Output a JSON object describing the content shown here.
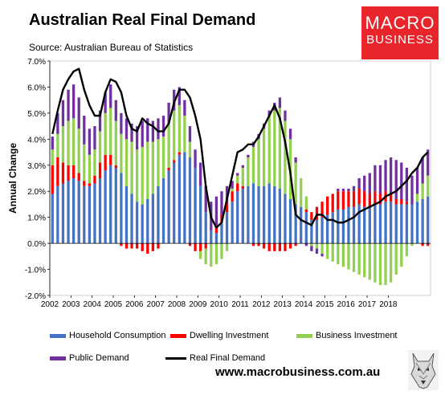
{
  "header": {
    "title": "Australian Real Final Demand",
    "subtitle": "Source: Australian Bureau of Statistics"
  },
  "logo": {
    "line1": "MACRO",
    "line2": "BUSINESS",
    "color": "#e8252b"
  },
  "footer": {
    "url": "www.macrobusiness.com.au"
  },
  "chart_data": {
    "type": "bar",
    "stacked": true,
    "title": "Australian Real Final Demand",
    "ylabel": "Annual Change",
    "xlabel": "",
    "ylim": [
      -2.0,
      7.0
    ],
    "yticks": [
      "-2.0%",
      "-1.0%",
      "0.0%",
      "1.0%",
      "2.0%",
      "3.0%",
      "4.0%",
      "5.0%",
      "6.0%",
      "7.0%"
    ],
    "xticks": [
      "2002",
      "2003",
      "2004",
      "2005",
      "2006",
      "2007",
      "2008",
      "2009",
      "2010",
      "2011",
      "2012",
      "2013",
      "2014",
      "2015",
      "2016",
      "2017",
      "2018"
    ],
    "x_start": "2002-Q1",
    "frequency": "quarterly",
    "grid": false,
    "legend_position": "bottom",
    "series": [
      {
        "name": "Household Consumption",
        "color": "#4472c4",
        "values": [
          1.9,
          2.2,
          2.3,
          2.4,
          2.5,
          2.4,
          2.2,
          2.2,
          2.3,
          2.5,
          2.8,
          3.0,
          2.9,
          2.7,
          2.2,
          1.9,
          1.6,
          1.5,
          1.7,
          1.9,
          2.2,
          2.5,
          2.8,
          3.1,
          3.4,
          3.5,
          3.3,
          2.9,
          2.2,
          1.2,
          0.5,
          0.4,
          0.8,
          1.2,
          1.6,
          2.0,
          2.1,
          2.2,
          2.3,
          2.2,
          2.2,
          2.3,
          2.2,
          2.1,
          1.9,
          1.7,
          1.5,
          1.4,
          1.2,
          0.9,
          0.9,
          1.0,
          1.1,
          1.2,
          1.3,
          1.3,
          1.4,
          1.4,
          1.5,
          1.4,
          1.4,
          1.5,
          1.5,
          1.6,
          1.6,
          1.5,
          1.5,
          1.5,
          1.5,
          1.6,
          1.7,
          1.8
        ]
      },
      {
        "name": "Dwelling Investment",
        "color": "#ff0000",
        "values": [
          1.1,
          1.1,
          0.8,
          0.6,
          0.5,
          0.3,
          0.2,
          0.1,
          0.3,
          0.6,
          0.6,
          0.4,
          0.1,
          -0.1,
          -0.2,
          -0.2,
          -0.2,
          -0.3,
          -0.4,
          -0.3,
          -0.2,
          0.0,
          0.1,
          0.1,
          0.1,
          0.0,
          -0.1,
          -0.3,
          -0.3,
          -0.2,
          0.0,
          0.3,
          0.3,
          0.4,
          0.4,
          0.3,
          0.1,
          0.0,
          -0.1,
          -0.1,
          -0.2,
          -0.3,
          -0.3,
          -0.3,
          -0.3,
          -0.2,
          -0.1,
          0.0,
          0.1,
          0.3,
          0.5,
          0.6,
          0.7,
          0.7,
          0.7,
          0.7,
          0.6,
          0.6,
          0.6,
          0.6,
          0.5,
          0.5,
          0.4,
          0.4,
          0.3,
          0.2,
          0.2,
          0.1,
          0.0,
          0.0,
          -0.1,
          -0.1
        ]
      },
      {
        "name": "Business Investment",
        "color": "#92d050",
        "values": [
          0.6,
          0.9,
          1.4,
          1.7,
          1.8,
          1.7,
          1.4,
          1.1,
          1.0,
          1.2,
          1.6,
          1.8,
          1.7,
          1.5,
          1.8,
          2.0,
          2.0,
          2.2,
          2.2,
          2.0,
          1.8,
          1.6,
          1.7,
          1.9,
          1.8,
          1.4,
          0.6,
          0.0,
          -0.3,
          -0.6,
          -0.9,
          -0.8,
          -0.6,
          -0.3,
          0.1,
          0.3,
          0.7,
          1.1,
          1.4,
          1.8,
          2.2,
          2.6,
          2.9,
          3.1,
          2.8,
          2.3,
          1.6,
          1.1,
          0.5,
          -0.1,
          -0.2,
          -0.4,
          -0.6,
          -0.7,
          -0.8,
          -0.9,
          -1.0,
          -1.1,
          -1.2,
          -1.3,
          -1.4,
          -1.5,
          -1.6,
          -1.6,
          -1.5,
          -1.2,
          -0.9,
          -0.5,
          -0.1,
          0.3,
          0.6,
          0.8
        ]
      },
      {
        "name": "Public Demand",
        "color": "#7030a0",
        "values": [
          0.5,
          0.8,
          1.0,
          1.2,
          1.3,
          1.2,
          1.1,
          1.0,
          0.9,
          0.8,
          0.8,
          0.9,
          0.8,
          0.8,
          0.8,
          0.7,
          0.9,
          1.0,
          0.9,
          0.8,
          0.8,
          0.8,
          0.8,
          0.8,
          0.7,
          0.6,
          0.6,
          0.7,
          0.9,
          1.0,
          1.1,
          1.1,
          0.9,
          0.6,
          0.3,
          0.1,
          0.1,
          0.1,
          0.2,
          0.2,
          0.2,
          0.2,
          0.3,
          0.4,
          0.4,
          0.4,
          0.2,
          0.0,
          -0.1,
          -0.2,
          -0.2,
          -0.1,
          0.0,
          0.0,
          0.1,
          0.1,
          0.1,
          0.2,
          0.4,
          0.6,
          0.8,
          1.0,
          1.1,
          1.2,
          1.4,
          1.5,
          1.4,
          1.3,
          1.1,
          1.0,
          1.0,
          1.0
        ]
      },
      {
        "name": "Real Final Demand",
        "type": "line",
        "color": "#000000",
        "values": [
          4.2,
          5.1,
          5.9,
          6.3,
          6.6,
          6.7,
          5.9,
          5.3,
          4.9,
          4.9,
          5.8,
          6.3,
          6.2,
          5.8,
          4.9,
          4.4,
          4.3,
          4.8,
          4.6,
          4.5,
          4.3,
          4.3,
          4.6,
          5.4,
          5.9,
          5.9,
          5.6,
          4.9,
          4.0,
          2.2,
          1.0,
          0.6,
          0.8,
          1.7,
          2.6,
          3.5,
          3.6,
          3.8,
          3.8,
          4.1,
          4.5,
          4.9,
          5.3,
          4.8,
          3.9,
          2.7,
          1.1,
          0.9,
          0.8,
          0.7,
          1.1,
          1.1,
          0.9,
          0.9,
          0.8,
          0.8,
          0.9,
          1.0,
          1.2,
          1.3,
          1.4,
          1.5,
          1.6,
          1.8,
          1.9,
          2.0,
          2.2,
          2.4,
          2.7,
          2.9,
          3.3,
          3.5
        ]
      }
    ]
  },
  "legend": [
    {
      "label": "Household Consumption"
    },
    {
      "label": "Dwelling Investment"
    },
    {
      "label": "Business Investment"
    },
    {
      "label": "Public Demand"
    },
    {
      "label": "Real Final Demand"
    }
  ]
}
